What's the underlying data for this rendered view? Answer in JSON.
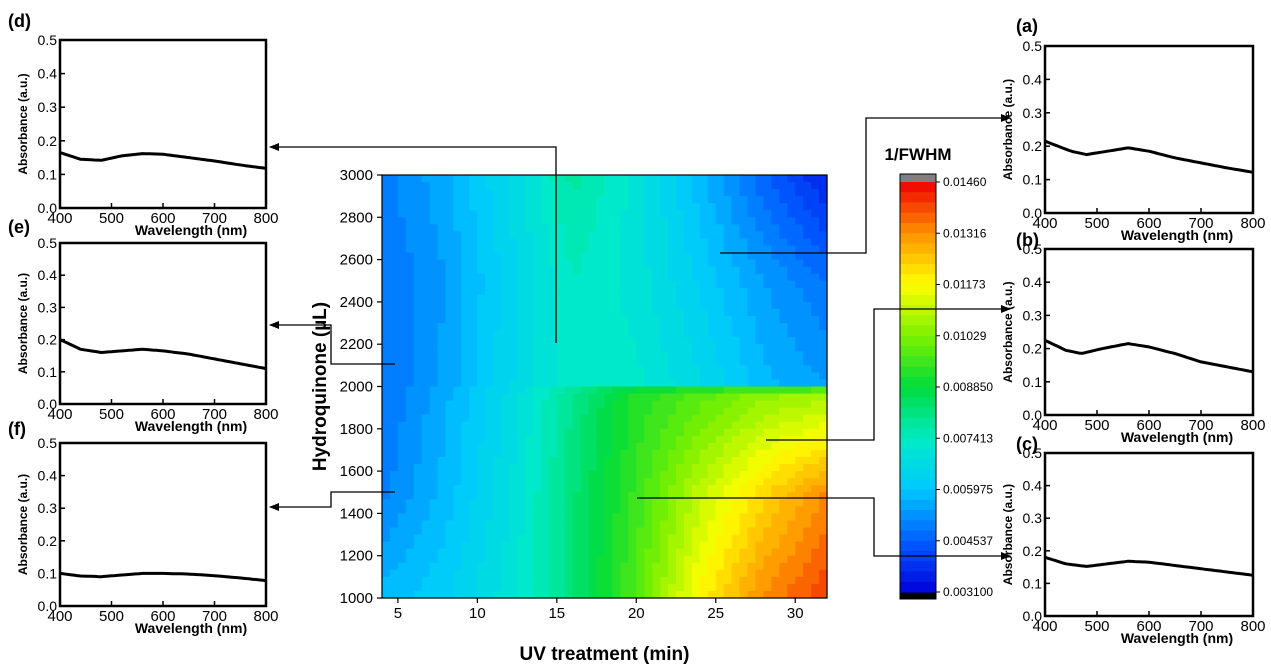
{
  "chart_data": [
    {
      "type": "heatmap",
      "id": "main-contour",
      "title": "",
      "xlabel": "UV treatment (min)",
      "ylabel": "Hydroquinone (µL)",
      "xlim": [
        4,
        32
      ],
      "ylim": [
        1000,
        3000
      ],
      "x_ticks": [
        5,
        10,
        15,
        20,
        25,
        30
      ],
      "y_ticks": [
        1000,
        1200,
        1400,
        1600,
        1800,
        2000,
        2200,
        2400,
        2600,
        2800,
        3000
      ],
      "x_nodes": [
        4,
        8,
        12,
        16,
        20,
        24,
        28,
        32
      ],
      "y_nodes": [
        1000,
        1500,
        1980,
        2000,
        2500,
        3000
      ],
      "z_grid": [
        [
          0.0058,
          0.0062,
          0.007,
          0.0082,
          0.0098,
          0.0118,
          0.0132,
          0.014
        ],
        [
          0.005,
          0.0058,
          0.0068,
          0.0082,
          0.0095,
          0.011,
          0.0122,
          0.0132
        ],
        [
          0.0048,
          0.0056,
          0.0066,
          0.008,
          0.0092,
          0.0098,
          0.0104,
          0.0106
        ],
        [
          0.0048,
          0.0055,
          0.0065,
          0.0074,
          0.0072,
          0.0066,
          0.0058,
          0.0054
        ],
        [
          0.0048,
          0.0054,
          0.0064,
          0.0074,
          0.007,
          0.0062,
          0.0054,
          0.0048
        ],
        [
          0.005,
          0.0056,
          0.0066,
          0.0078,
          0.007,
          0.0058,
          0.0046,
          0.0036
        ]
      ],
      "colorbar": {
        "label": "1/FWHM",
        "ticks": [
          "0.01460",
          "0.01316",
          "0.01173",
          "0.01029",
          "0.008850",
          "0.007413",
          "0.005975",
          "0.004537",
          "0.003100"
        ],
        "min": 0.0031,
        "max": 0.0146,
        "over_color": "#808080",
        "under_color": "#000000"
      }
    },
    {
      "type": "line",
      "panel": "(a)",
      "xlabel": "Wavelength (nm)",
      "ylabel": "Absorbance (a.u.)",
      "xlim": [
        400,
        800
      ],
      "ylim": [
        0,
        0.5
      ],
      "x_ticks": [
        400,
        500,
        600,
        700,
        800
      ],
      "y_ticks": [
        "0.0",
        "0.1",
        "0.2",
        "0.3",
        "0.4",
        "0.5"
      ],
      "x": [
        400,
        450,
        480,
        520,
        560,
        600,
        650,
        700,
        750,
        800
      ],
      "y": [
        0.215,
        0.185,
        0.175,
        0.185,
        0.195,
        0.185,
        0.165,
        0.15,
        0.135,
        0.122
      ]
    },
    {
      "type": "line",
      "panel": "(b)",
      "xlabel": "Wavelength (nm)",
      "ylabel": "Absorbance (a.u.)",
      "xlim": [
        400,
        800
      ],
      "ylim": [
        0,
        0.5
      ],
      "x_ticks": [
        400,
        500,
        600,
        700,
        800
      ],
      "y_ticks": [
        "0.0",
        "0.1",
        "0.2",
        "0.3",
        "0.4",
        "0.5"
      ],
      "x": [
        400,
        440,
        470,
        510,
        560,
        600,
        650,
        700,
        750,
        800
      ],
      "y": [
        0.225,
        0.195,
        0.185,
        0.2,
        0.215,
        0.205,
        0.185,
        0.16,
        0.145,
        0.13
      ]
    },
    {
      "type": "line",
      "panel": "(c)",
      "xlabel": "Wavelength (nm)",
      "ylabel": "Absorbance (a.u.)",
      "xlim": [
        400,
        800
      ],
      "ylim": [
        0,
        0.5
      ],
      "x_ticks": [
        400,
        500,
        600,
        700,
        800
      ],
      "y_ticks": [
        "0.0",
        "0.1",
        "0.2",
        "0.3",
        "0.4",
        "0.5"
      ],
      "x": [
        400,
        440,
        480,
        520,
        560,
        600,
        650,
        700,
        750,
        800
      ],
      "y": [
        0.18,
        0.16,
        0.152,
        0.16,
        0.168,
        0.165,
        0.155,
        0.145,
        0.135,
        0.125
      ]
    },
    {
      "type": "line",
      "panel": "(d)",
      "xlabel": "Wavelength (nm)",
      "ylabel": "Absorbance (a.u.)",
      "xlim": [
        400,
        800
      ],
      "ylim": [
        0,
        0.5
      ],
      "x_ticks": [
        400,
        500,
        600,
        700,
        800
      ],
      "y_ticks": [
        "0.0",
        "0.1",
        "0.2",
        "0.3",
        "0.4",
        "0.5"
      ],
      "x": [
        400,
        440,
        480,
        520,
        560,
        600,
        650,
        700,
        750,
        800
      ],
      "y": [
        0.165,
        0.145,
        0.142,
        0.155,
        0.162,
        0.16,
        0.15,
        0.14,
        0.128,
        0.118
      ]
    },
    {
      "type": "line",
      "panel": "(e)",
      "xlabel": "Wavelength (nm)",
      "ylabel": "Absorbance (a.u.)",
      "xlim": [
        400,
        800
      ],
      "ylim": [
        0,
        0.5
      ],
      "x_ticks": [
        400,
        500,
        600,
        700,
        800
      ],
      "y_ticks": [
        "0.0",
        "0.1",
        "0.2",
        "0.3",
        "0.4",
        "0.5"
      ],
      "x": [
        400,
        440,
        480,
        520,
        560,
        600,
        650,
        700,
        750,
        800
      ],
      "y": [
        0.2,
        0.17,
        0.16,
        0.165,
        0.17,
        0.165,
        0.155,
        0.14,
        0.125,
        0.11
      ]
    },
    {
      "type": "line",
      "panel": "(f)",
      "xlabel": "Wavelength (nm)",
      "ylabel": "Absorbance (a.u.)",
      "xlim": [
        400,
        800
      ],
      "ylim": [
        0,
        0.5
      ],
      "x_ticks": [
        400,
        500,
        600,
        700,
        800
      ],
      "y_ticks": [
        "0.0",
        "0.1",
        "0.2",
        "0.3",
        "0.4",
        "0.5"
      ],
      "x": [
        400,
        440,
        480,
        520,
        560,
        600,
        650,
        700,
        750,
        800
      ],
      "y": [
        0.1,
        0.092,
        0.09,
        0.095,
        0.1,
        0.1,
        0.098,
        0.093,
        0.086,
        0.078
      ]
    }
  ]
}
